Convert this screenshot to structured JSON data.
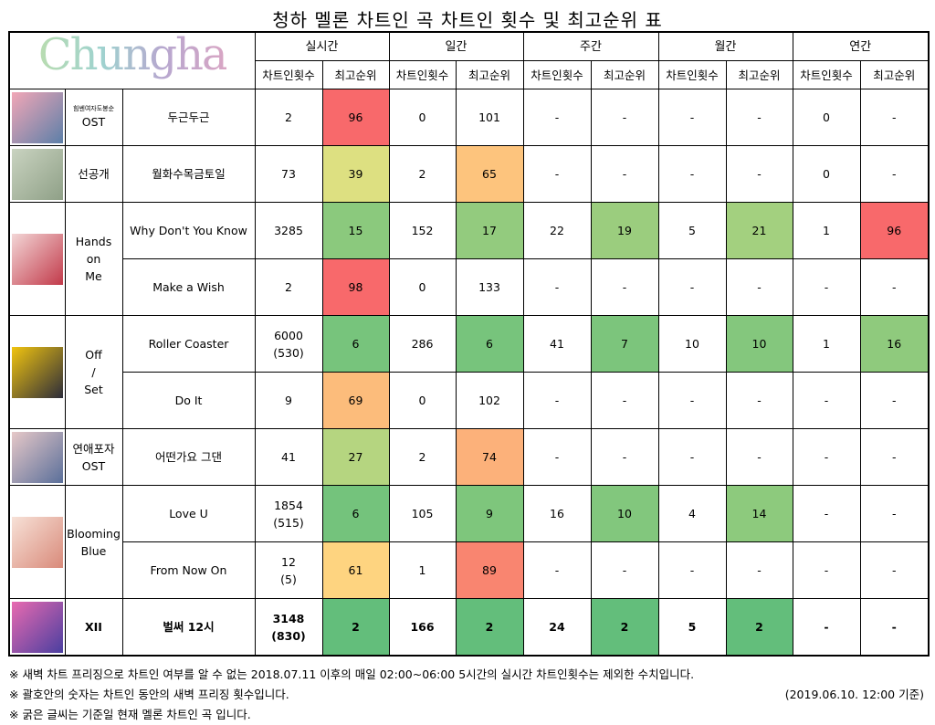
{
  "title": "청하 멜론 차트인 곡 차트인 횟수 및 최고순위 표",
  "logo_text": "Chungha",
  "periods": [
    "실시간",
    "일간",
    "주간",
    "월간",
    "연간"
  ],
  "subheaders": [
    "차트인횟수",
    "최고순위"
  ],
  "albums": [
    {
      "small": "힘쎈여자도봉순",
      "name": "OST",
      "cover": [
        "#f2a7b7",
        "#5c7fa8"
      ],
      "songs": [
        {
          "title": "두근두근",
          "cells": [
            "2",
            "96",
            "0",
            "101",
            "-",
            "-",
            "-",
            "-",
            "0",
            "-"
          ],
          "colors": [
            null,
            "#f8696b",
            null,
            null,
            null,
            null,
            null,
            null,
            null,
            null
          ]
        }
      ]
    },
    {
      "name": "선공개",
      "cover": [
        "#c9d3c0",
        "#8fa087"
      ],
      "songs": [
        {
          "title": "월화수목금토일",
          "cells": [
            "73",
            "39",
            "2",
            "65",
            "-",
            "-",
            "-",
            "-",
            "0",
            "-"
          ],
          "colors": [
            null,
            "#dde081",
            null,
            "#fdc47d",
            null,
            null,
            null,
            null,
            null,
            null
          ]
        }
      ]
    },
    {
      "name": "Hands\non\nMe",
      "cover": [
        "#f3d6d6",
        "#c23a4a"
      ],
      "songs": [
        {
          "title": "Why Don't You Know",
          "cells": [
            "3285",
            "15",
            "152",
            "17",
            "22",
            "19",
            "5",
            "21",
            "1",
            "96"
          ],
          "colors": [
            null,
            "#8bc97d",
            null,
            "#93cb7e",
            null,
            "#9bcd7e",
            null,
            "#a3d07f",
            null,
            "#f8696b"
          ]
        },
        {
          "title": "Make a Wish",
          "cells": [
            "2",
            "98",
            "0",
            "133",
            "-",
            "-",
            "-",
            "-",
            "-",
            "-"
          ],
          "colors": [
            null,
            "#f8696b",
            null,
            null,
            null,
            null,
            null,
            null,
            null,
            null
          ]
        }
      ]
    },
    {
      "name": "Off\n/\nSet",
      "cover": [
        "#f1c40f",
        "#2c2c3a"
      ],
      "songs": [
        {
          "title": "Roller Coaster",
          "cells": [
            "6000\n(530)",
            "6",
            "286",
            "6",
            "41",
            "7",
            "10",
            "10",
            "1",
            "16"
          ],
          "colors": [
            null,
            "#77c47c",
            null,
            "#77c47c",
            null,
            "#7cc57c",
            null,
            "#84c77d",
            null,
            "#8fca7d"
          ]
        },
        {
          "title": "Do It",
          "cells": [
            "9",
            "69",
            "0",
            "102",
            "-",
            "-",
            "-",
            "-",
            "-",
            "-"
          ],
          "colors": [
            null,
            "#fcbc7b",
            null,
            null,
            null,
            null,
            null,
            null,
            null,
            null
          ]
        }
      ]
    },
    {
      "name": "연애포자\nOST",
      "cover": [
        "#e6c8c8",
        "#5a6f9a"
      ],
      "songs": [
        {
          "title": "어떤가요 그댄",
          "cells": [
            "41",
            "27",
            "2",
            "74",
            "-",
            "-",
            "-",
            "-",
            "-",
            "-"
          ],
          "colors": [
            null,
            "#b5d580",
            null,
            "#fcb17a",
            null,
            null,
            null,
            null,
            null,
            null
          ]
        }
      ]
    },
    {
      "name": "Blooming\nBlue",
      "cover": [
        "#f7e1d7",
        "#d98a7a"
      ],
      "songs": [
        {
          "title": "Love U",
          "cells": [
            "1854\n(515)",
            "6",
            "105",
            "9",
            "16",
            "10",
            "4",
            "14",
            "-",
            "-"
          ],
          "colors": [
            null,
            "#74c37c",
            null,
            "#7ec67c",
            null,
            "#82c77d",
            null,
            "#8dca7d",
            null,
            null
          ]
        },
        {
          "title": "From Now On",
          "cells": [
            "12\n(5)",
            "61",
            "1",
            "89",
            "-",
            "-",
            "-",
            "-",
            "-",
            "-"
          ],
          "colors": [
            null,
            "#fed480",
            null,
            "#f98570",
            null,
            null,
            null,
            null,
            null,
            null
          ]
        }
      ]
    },
    {
      "name": "XII",
      "bold": true,
      "cover": [
        "#e86ab0",
        "#4a3fa0"
      ],
      "songs": [
        {
          "title": "벌써 12시",
          "cells": [
            "3148\n(830)",
            "2",
            "166",
            "2",
            "24",
            "2",
            "5",
            "2",
            "-",
            "-"
          ],
          "colors": [
            null,
            "#63be7b",
            null,
            "#63be7b",
            null,
            "#63be7b",
            null,
            "#63be7b",
            null,
            null
          ]
        }
      ]
    }
  ],
  "notes": [
    "※ 새벽 차트 프리징으로 차트인 여부를 알 수 없는 2018.07.11 이후의 매일 02:00~06:00 5시간의 실시간 차트인횟수는 제외한 수치입니다.",
    "※ 괄호안의 숫자는 차트인 동안의 새벽 프리징 횟수입니다.",
    "※ 굵은 글씨는 기준일 현재 멜론 차트인 곡 입니다."
  ],
  "date": "(2019.06.10. 12:00 기준)"
}
